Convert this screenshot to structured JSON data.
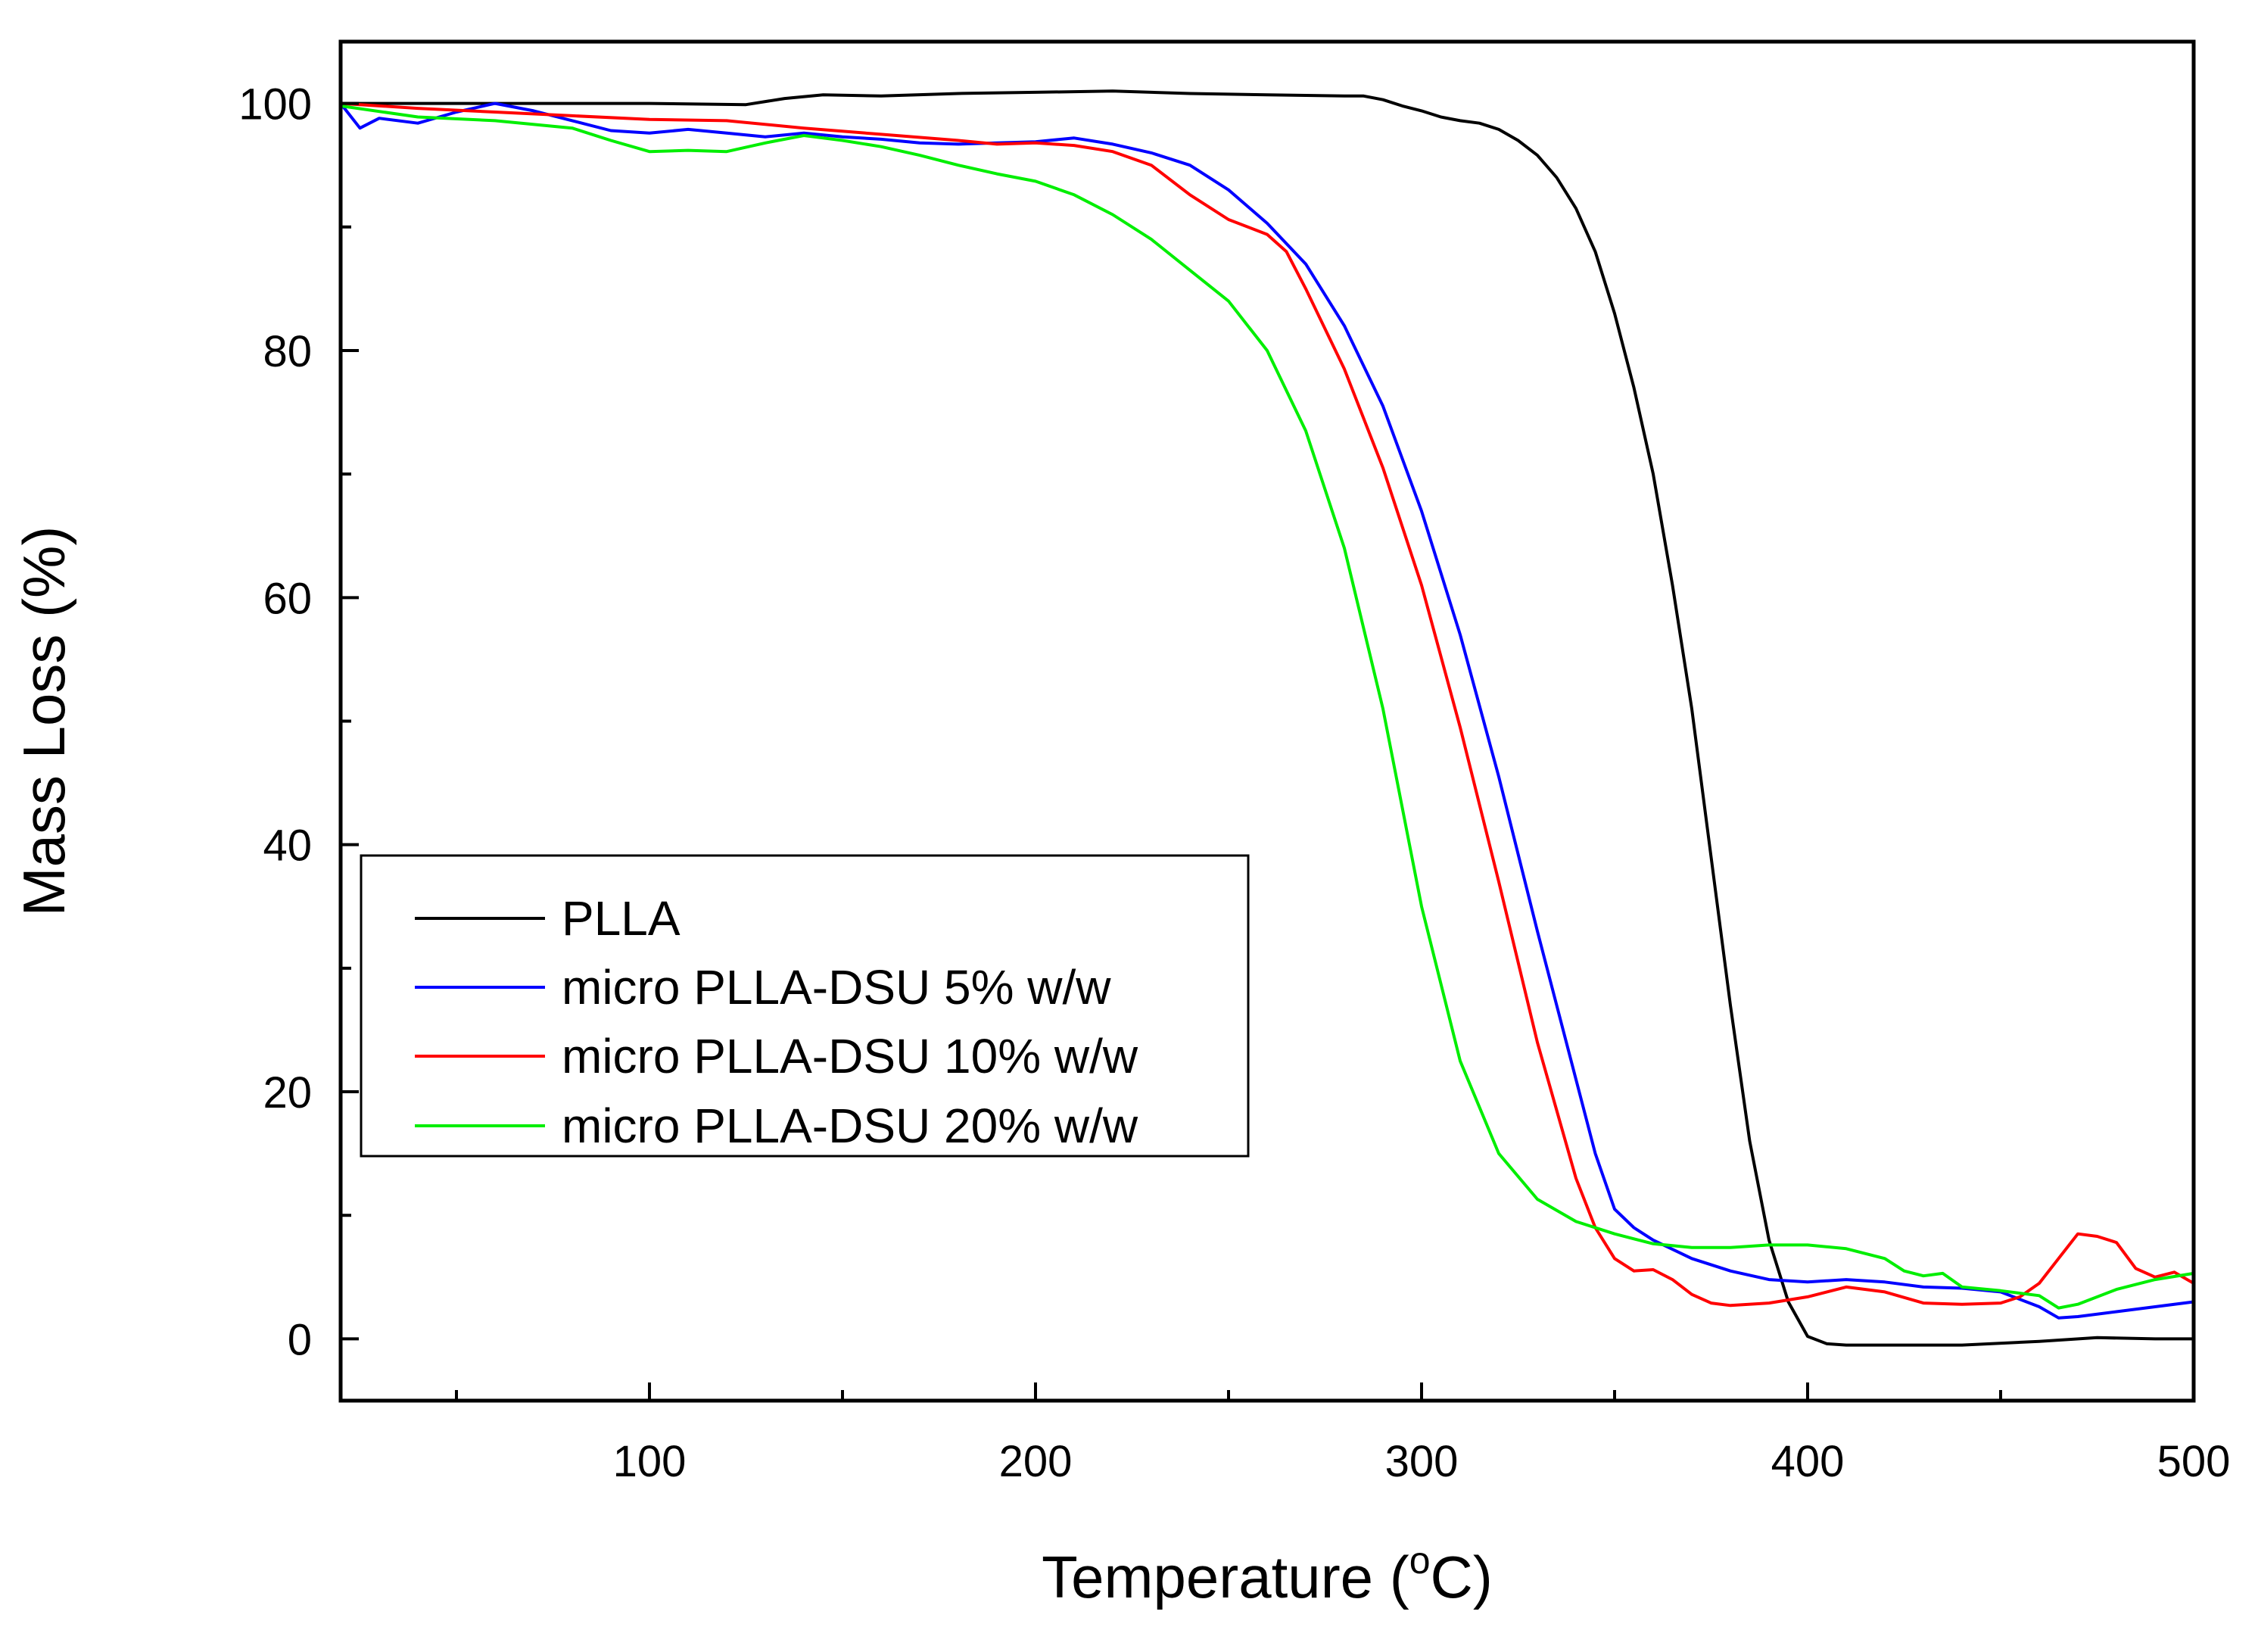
{
  "chart_data": {
    "type": "line",
    "title": "",
    "xlabel": "Temperature (",
    "xlabel_sup": "o",
    "xlabel_suffix": "C)",
    "ylabel": "Mass Loss (%)",
    "xlim": [
      20,
      500
    ],
    "ylim": [
      -5,
      105
    ],
    "x_ticks": [
      100,
      200,
      300,
      400,
      500
    ],
    "x_minor_ticks": [
      50,
      150,
      250,
      350,
      450
    ],
    "y_ticks": [
      0,
      20,
      40,
      60,
      80,
      100
    ],
    "y_minor_ticks": [
      10,
      30,
      50,
      70,
      90
    ],
    "grid": false,
    "legend_position": "lower-left",
    "series": [
      {
        "name": "PLLA",
        "color": "#000000",
        "points": [
          [
            20,
            100
          ],
          [
            60,
            100
          ],
          [
            100,
            100
          ],
          [
            125,
            99.9
          ],
          [
            135,
            100.4
          ],
          [
            145,
            100.7
          ],
          [
            160,
            100.6
          ],
          [
            180,
            100.8
          ],
          [
            200,
            100.9
          ],
          [
            220,
            101
          ],
          [
            240,
            100.8
          ],
          [
            260,
            100.7
          ],
          [
            280,
            100.6
          ],
          [
            285,
            100.6
          ],
          [
            290,
            100.3
          ],
          [
            295,
            99.8
          ],
          [
            300,
            99.4
          ],
          [
            305,
            98.9
          ],
          [
            310,
            98.6
          ],
          [
            315,
            98.4
          ],
          [
            320,
            97.9
          ],
          [
            325,
            97
          ],
          [
            330,
            95.8
          ],
          [
            335,
            94
          ],
          [
            340,
            91.5
          ],
          [
            345,
            88
          ],
          [
            350,
            83
          ],
          [
            355,
            77
          ],
          [
            360,
            70
          ],
          [
            365,
            61
          ],
          [
            370,
            51
          ],
          [
            375,
            39
          ],
          [
            380,
            27
          ],
          [
            385,
            16
          ],
          [
            390,
            8
          ],
          [
            395,
            3
          ],
          [
            400,
            0.2
          ],
          [
            405,
            -0.4
          ],
          [
            410,
            -0.5
          ],
          [
            420,
            -0.5
          ],
          [
            440,
            -0.5
          ],
          [
            460,
            -0.2
          ],
          [
            475,
            0.1
          ],
          [
            490,
            0
          ],
          [
            500,
            0
          ]
        ]
      },
      {
        "name": "micro PLLA-DSU 5% w/w",
        "color": "#0000ff",
        "points": [
          [
            20,
            100
          ],
          [
            25,
            98
          ],
          [
            30,
            98.8
          ],
          [
            40,
            98.4
          ],
          [
            50,
            99.3
          ],
          [
            60,
            100
          ],
          [
            70,
            99.4
          ],
          [
            80,
            98.6
          ],
          [
            90,
            97.8
          ],
          [
            100,
            97.6
          ],
          [
            110,
            97.9
          ],
          [
            120,
            97.6
          ],
          [
            130,
            97.3
          ],
          [
            140,
            97.6
          ],
          [
            150,
            97.3
          ],
          [
            160,
            97.1
          ],
          [
            170,
            96.8
          ],
          [
            180,
            96.7
          ],
          [
            190,
            96.8
          ],
          [
            200,
            96.9
          ],
          [
            210,
            97.2
          ],
          [
            220,
            96.7
          ],
          [
            230,
            96
          ],
          [
            240,
            95
          ],
          [
            250,
            93
          ],
          [
            260,
            90.3
          ],
          [
            270,
            87
          ],
          [
            280,
            82
          ],
          [
            290,
            75.5
          ],
          [
            300,
            67
          ],
          [
            310,
            57
          ],
          [
            320,
            45.5
          ],
          [
            330,
            33
          ],
          [
            340,
            21
          ],
          [
            345,
            15
          ],
          [
            350,
            10.5
          ],
          [
            355,
            9
          ],
          [
            360,
            8
          ],
          [
            370,
            6.5
          ],
          [
            380,
            5.5
          ],
          [
            390,
            4.8
          ],
          [
            400,
            4.6
          ],
          [
            410,
            4.8
          ],
          [
            420,
            4.6
          ],
          [
            430,
            4.2
          ],
          [
            440,
            4.1
          ],
          [
            450,
            3.8
          ],
          [
            460,
            2.6
          ],
          [
            465,
            1.7
          ],
          [
            470,
            1.8
          ],
          [
            480,
            2.2
          ],
          [
            490,
            2.6
          ],
          [
            500,
            3
          ]
        ]
      },
      {
        "name": "micro PLLA-DSU 10% w/w",
        "color": "#ff0000",
        "points": [
          [
            20,
            100
          ],
          [
            40,
            99.6
          ],
          [
            60,
            99.3
          ],
          [
            80,
            99
          ],
          [
            100,
            98.7
          ],
          [
            120,
            98.6
          ],
          [
            140,
            98
          ],
          [
            160,
            97.5
          ],
          [
            180,
            97
          ],
          [
            190,
            96.7
          ],
          [
            200,
            96.8
          ],
          [
            210,
            96.6
          ],
          [
            220,
            96.1
          ],
          [
            230,
            95
          ],
          [
            240,
            92.6
          ],
          [
            250,
            90.6
          ],
          [
            260,
            89.4
          ],
          [
            265,
            88
          ],
          [
            270,
            85
          ],
          [
            280,
            78.5
          ],
          [
            290,
            70.5
          ],
          [
            300,
            61
          ],
          [
            310,
            49.5
          ],
          [
            320,
            37
          ],
          [
            330,
            24
          ],
          [
            340,
            13
          ],
          [
            345,
            9
          ],
          [
            350,
            6.5
          ],
          [
            355,
            5.5
          ],
          [
            360,
            5.6
          ],
          [
            365,
            4.8
          ],
          [
            370,
            3.6
          ],
          [
            375,
            2.9
          ],
          [
            380,
            2.7
          ],
          [
            390,
            2.9
          ],
          [
            400,
            3.4
          ],
          [
            410,
            4.2
          ],
          [
            420,
            3.8
          ],
          [
            430,
            2.9
          ],
          [
            440,
            2.8
          ],
          [
            450,
            2.9
          ],
          [
            455,
            3.4
          ],
          [
            460,
            4.5
          ],
          [
            465,
            6.5
          ],
          [
            470,
            8.5
          ],
          [
            475,
            8.3
          ],
          [
            480,
            7.8
          ],
          [
            485,
            5.7
          ],
          [
            490,
            5
          ],
          [
            495,
            5.4
          ],
          [
            500,
            4.5
          ]
        ]
      },
      {
        "name": "micro PLLA-DSU 20% w/w",
        "color": "#00ee00",
        "points": [
          [
            20,
            99.8
          ],
          [
            40,
            98.9
          ],
          [
            60,
            98.6
          ],
          [
            80,
            98
          ],
          [
            90,
            97
          ],
          [
            100,
            96.1
          ],
          [
            110,
            96.2
          ],
          [
            120,
            96.1
          ],
          [
            130,
            96.8
          ],
          [
            140,
            97.4
          ],
          [
            150,
            97
          ],
          [
            160,
            96.5
          ],
          [
            170,
            95.8
          ],
          [
            180,
            95
          ],
          [
            190,
            94.3
          ],
          [
            200,
            93.7
          ],
          [
            210,
            92.6
          ],
          [
            220,
            91
          ],
          [
            230,
            89
          ],
          [
            240,
            86.5
          ],
          [
            250,
            84
          ],
          [
            260,
            80
          ],
          [
            270,
            73.5
          ],
          [
            280,
            64
          ],
          [
            290,
            51
          ],
          [
            300,
            35
          ],
          [
            310,
            22.5
          ],
          [
            320,
            15
          ],
          [
            330,
            11.3
          ],
          [
            340,
            9.5
          ],
          [
            350,
            8.5
          ],
          [
            360,
            7.7
          ],
          [
            370,
            7.4
          ],
          [
            380,
            7.4
          ],
          [
            390,
            7.6
          ],
          [
            400,
            7.6
          ],
          [
            410,
            7.3
          ],
          [
            420,
            6.5
          ],
          [
            425,
            5.5
          ],
          [
            430,
            5.1
          ],
          [
            435,
            5.3
          ],
          [
            440,
            4.2
          ],
          [
            450,
            3.9
          ],
          [
            460,
            3.5
          ],
          [
            465,
            2.5
          ],
          [
            470,
            2.8
          ],
          [
            480,
            4
          ],
          [
            490,
            4.8
          ],
          [
            500,
            5.3
          ]
        ]
      }
    ]
  }
}
